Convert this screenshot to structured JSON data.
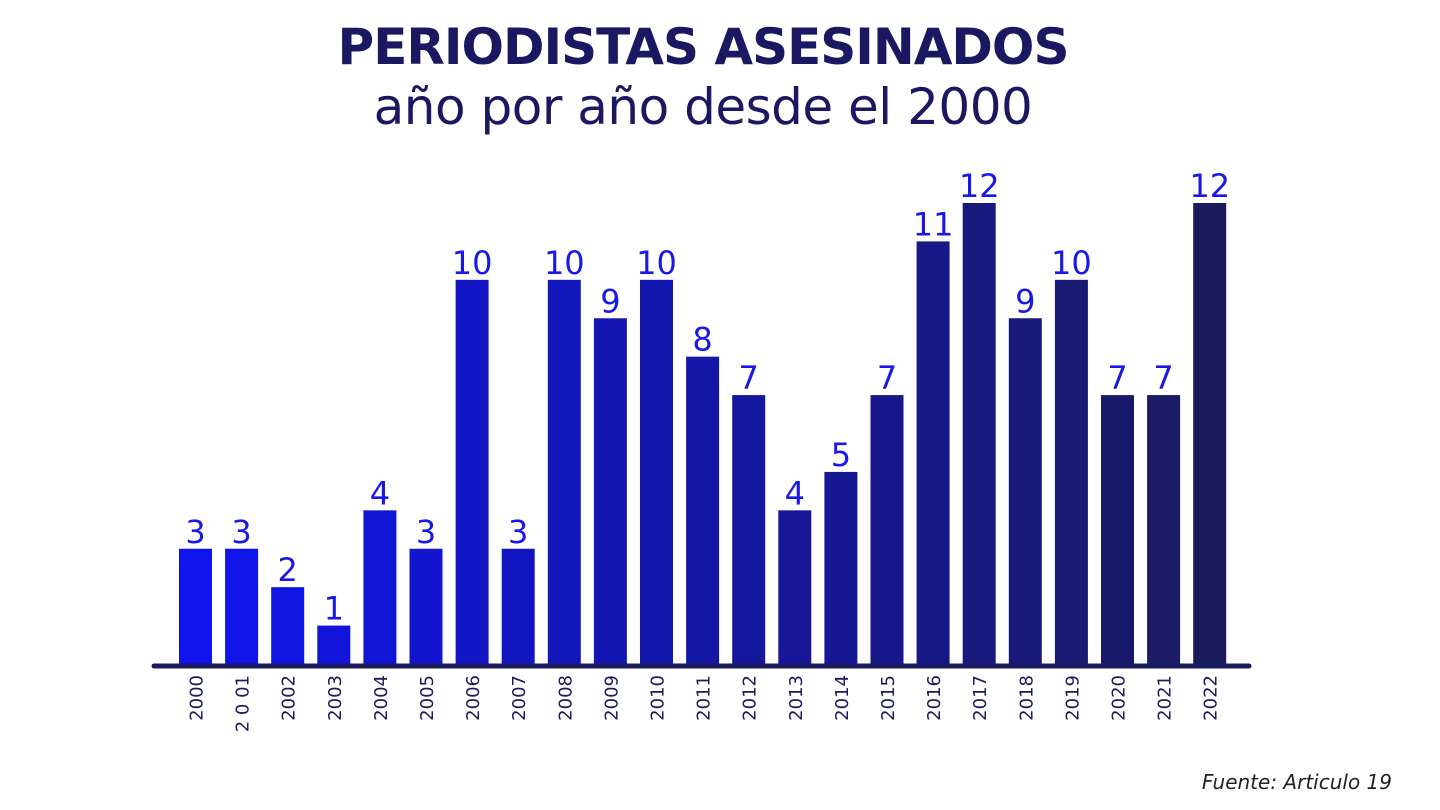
{
  "header": {
    "title": "PERIODISTAS ASESINADOS",
    "subtitle": "año por año desde el 2000"
  },
  "footer": {
    "source": "Fuente: Articulo 19"
  },
  "colors": {
    "bar_start": "#0f14ee",
    "bar_end": "#1a1a5e",
    "value_label": "#1a18e6",
    "axis": "#1a1a5e",
    "tick_label": "#1a1a5e"
  },
  "chart_data": {
    "type": "bar",
    "title": "PERIODISTAS ASESINADOS",
    "subtitle": "año por año desde el 2000",
    "xlabel": "",
    "ylabel": "",
    "ylim": [
      0,
      12
    ],
    "grid": false,
    "categories": [
      "2000",
      "2 0 01",
      "2002",
      "2003",
      "2004",
      "2005",
      "2006",
      "2007",
      "2008",
      "2009",
      "2010",
      "2011",
      "2012",
      "2013",
      "2014",
      "2015",
      "2016",
      "2017",
      "2018",
      "2019",
      "2020",
      "2021",
      "2022"
    ],
    "values": [
      3,
      3,
      2,
      1,
      4,
      3,
      10,
      3,
      10,
      9,
      10,
      8,
      7,
      4,
      5,
      7,
      11,
      12,
      9,
      10,
      7,
      7,
      12
    ]
  }
}
